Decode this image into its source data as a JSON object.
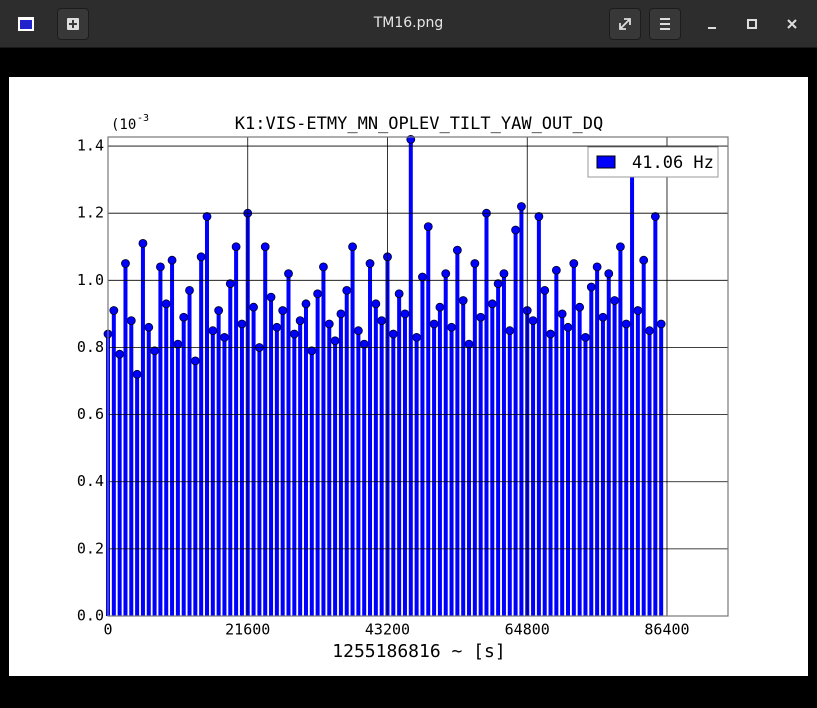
{
  "window": {
    "title": "TM16.png"
  },
  "chart_data": {
    "type": "stem",
    "title": "K1:VIS-ETMY_MN_OPLEV_TILT_YAW_OUT_DQ",
    "xlabel": "1255186816 ~ [s]",
    "y_scale_base": "(10",
    "y_scale_exponent": "-3",
    "xlim": [
      0,
      95830
    ],
    "ylim": [
      0,
      1.427
    ],
    "xticks": [
      0,
      21600,
      43200,
      64800,
      86400
    ],
    "yticks": [
      {
        "value": 0,
        "label": "0.0"
      },
      0.2,
      0.4,
      0.6,
      0.8,
      {
        "value": 1,
        "label": "1.0"
      },
      1.2,
      1.4
    ],
    "grid": true,
    "legend": "upper right",
    "series": [
      {
        "name": "41.06 Hz",
        "color": "#0000ff",
        "x": [
          0,
          900,
          1800,
          2700,
          3600,
          4500,
          5400,
          6300,
          7200,
          8100,
          9000,
          9900,
          10800,
          11700,
          12600,
          13500,
          14400,
          15300,
          16200,
          17100,
          18000,
          18900,
          19800,
          20700,
          21600,
          22500,
          23400,
          24300,
          25200,
          26100,
          27000,
          27900,
          28800,
          29700,
          30600,
          31500,
          32400,
          33300,
          34200,
          35100,
          36000,
          36900,
          37800,
          38700,
          39600,
          40500,
          41400,
          42300,
          43200,
          44100,
          45000,
          45900,
          46800,
          47700,
          48600,
          49500,
          50400,
          51300,
          52200,
          53100,
          54000,
          54900,
          55800,
          56700,
          57600,
          58500,
          59400,
          60300,
          61200,
          62100,
          63000,
          63900,
          64800,
          65700,
          66600,
          67500,
          68400,
          69300,
          70200,
          71100,
          72000,
          72900,
          73800,
          74700,
          75600,
          76500,
          77400,
          78300,
          79200,
          80100,
          81000,
          81900,
          82800,
          83700,
          84600,
          85500
        ],
        "values": [
          0.84,
          0.91,
          0.78,
          1.05,
          0.88,
          0.72,
          1.11,
          0.86,
          0.79,
          1.04,
          0.93,
          1.06,
          0.81,
          0.89,
          0.97,
          0.76,
          1.07,
          1.19,
          0.85,
          0.91,
          0.83,
          0.99,
          1.1,
          0.87,
          1.2,
          0.92,
          0.8,
          1.1,
          0.95,
          0.86,
          0.91,
          1.02,
          0.84,
          0.88,
          0.93,
          0.79,
          0.96,
          1.04,
          0.87,
          0.82,
          0.9,
          0.97,
          1.1,
          0.85,
          0.81,
          1.05,
          0.93,
          0.88,
          1.07,
          0.84,
          0.96,
          0.9,
          1.42,
          0.83,
          1.01,
          1.16,
          0.87,
          0.92,
          1.02,
          0.86,
          1.09,
          0.94,
          0.81,
          1.05,
          0.89,
          1.2,
          0.93,
          0.99,
          1.02,
          0.85,
          1.15,
          1.22,
          0.91,
          0.88,
          1.19,
          0.97,
          0.84,
          1.03,
          0.9,
          0.86,
          1.05,
          0.92,
          0.83,
          0.98,
          1.04,
          0.89,
          1.02,
          0.94,
          1.1,
          0.87,
          1.38,
          0.91,
          1.06,
          0.85,
          1.19,
          0.87
        ]
      }
    ]
  }
}
